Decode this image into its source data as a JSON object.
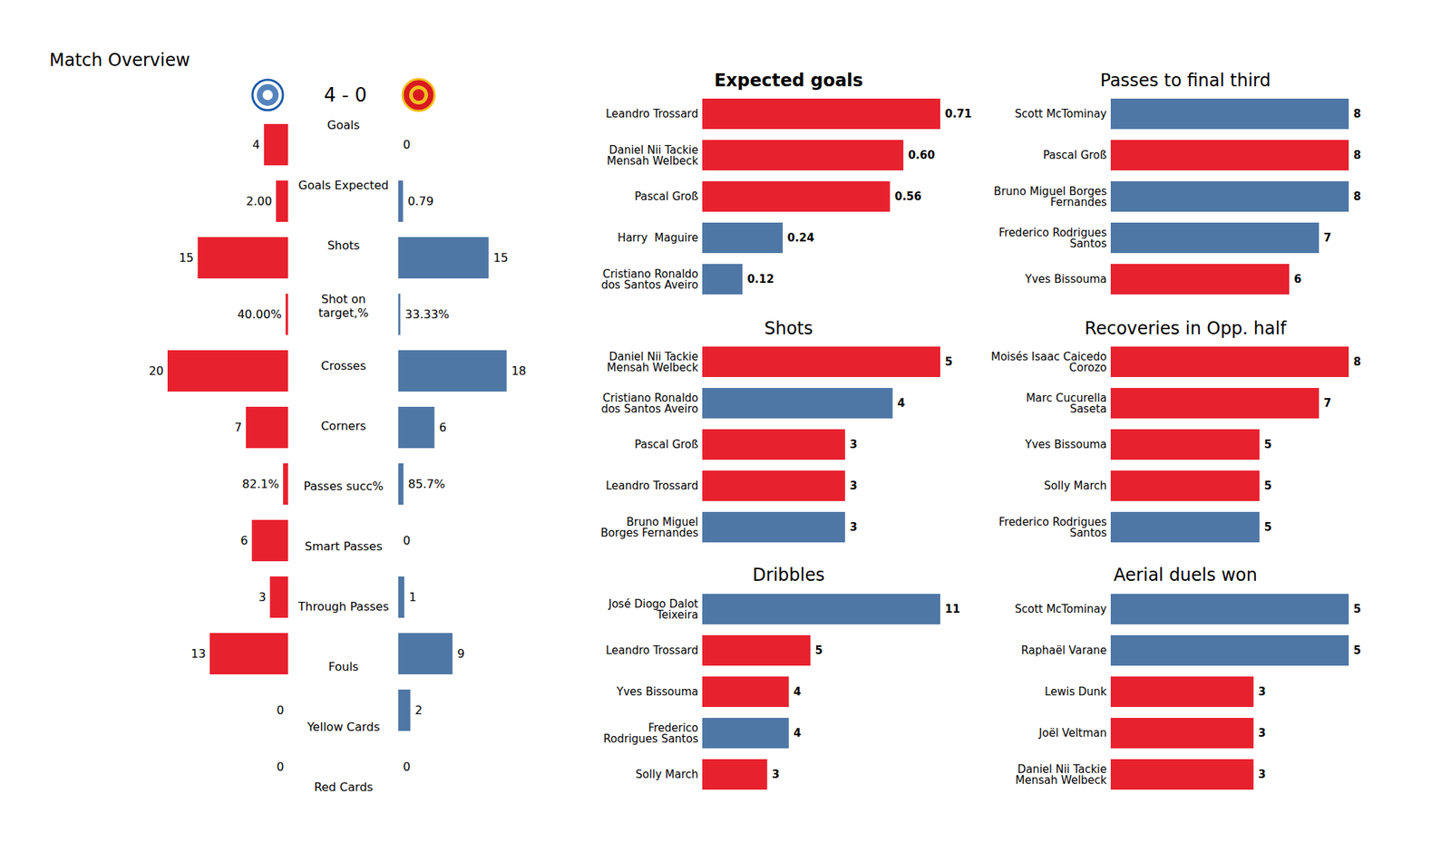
{
  "chart_data": [
    {
      "type": "bar",
      "orientation": "horizontal",
      "title": "Match Overview",
      "subtitle": "4 - 0",
      "categories": [
        "Goals",
        "Goals Expected",
        "Shots",
        "Shot on\ntarget,%",
        "Crosses",
        "Corners",
        "Passes succ%",
        "Smart Passes",
        "Through Passes",
        "Fouls",
        "Yellow Cards",
        "Red Cards"
      ],
      "series": [
        {
          "color": "#e8212e",
          "values": [
            4,
            2.0,
            15,
            0.4,
            20,
            7,
            0.821,
            6,
            3,
            13,
            0,
            0
          ],
          "value_labels": [
            "4",
            "2.00",
            "15",
            "40.00%",
            "20",
            "7",
            "82.1%",
            "6",
            "3",
            "13",
            "0",
            "0"
          ]
        },
        {
          "color": "#4e77a6",
          "values": [
            0,
            0.79,
            15,
            0.3333,
            18,
            6,
            0.857,
            0,
            1,
            9,
            2,
            0
          ],
          "value_labels": [
            "0",
            "0.79",
            "15",
            "33.33%",
            "18",
            "6",
            "85.7%",
            "0",
            "1",
            "9",
            "2",
            "0"
          ]
        }
      ],
      "data_labels": true,
      "tick_labels": false
    },
    {
      "type": "bar",
      "orientation": "horizontal",
      "title": "Expected goals",
      "categories": [
        "Leandro Trossard",
        "Daniel Nii Tackie\nMensah Welbeck",
        "Pascal Groß",
        "Harry  Maguire",
        "Cristiano Ronaldo\ndos Santos Aveiro"
      ],
      "values": [
        0.71,
        0.6,
        0.56,
        0.24,
        0.12
      ],
      "value_labels": [
        "0.71",
        "0.60",
        "0.56",
        "0.24",
        "0.12"
      ],
      "colors": [
        "#e8212e",
        "#e8212e",
        "#e8212e",
        "#4e77a6",
        "#4e77a6"
      ],
      "data_labels": true,
      "tick_labels": "y"
    },
    {
      "type": "bar",
      "orientation": "horizontal",
      "title": "Passes to final third",
      "categories": [
        "Scott McTominay",
        "Pascal Groß",
        "Bruno Miguel Borges\nFernandes",
        "Frederico Rodrigues\nSantos",
        "Yves Bissouma"
      ],
      "values": [
        8,
        8,
        8,
        7,
        6
      ],
      "colors": [
        "#4e77a6",
        "#e8212e",
        "#4e77a6",
        "#4e77a6",
        "#e8212e"
      ],
      "data_labels": true,
      "tick_labels": "y"
    },
    {
      "type": "bar",
      "orientation": "horizontal",
      "title": "Shots",
      "categories": [
        "Daniel Nii Tackie\nMensah Welbeck",
        "Cristiano Ronaldo\ndos Santos Aveiro",
        "Pascal Groß",
        "Leandro Trossard",
        "Bruno Miguel\nBorges Fernandes"
      ],
      "values": [
        5,
        4,
        3,
        3,
        3
      ],
      "colors": [
        "#e8212e",
        "#4e77a6",
        "#e8212e",
        "#e8212e",
        "#4e77a6"
      ],
      "data_labels": true,
      "tick_labels": "y"
    },
    {
      "type": "bar",
      "orientation": "horizontal",
      "title": "Recoveries in Opp. half",
      "categories": [
        "Moisés Isaac Caicedo\nCorozo",
        "Marc Cucurella\nSaseta",
        "Yves Bissouma",
        "Solly March",
        "Frederico Rodrigues\nSantos"
      ],
      "values": [
        8,
        7,
        5,
        5,
        5
      ],
      "colors": [
        "#e8212e",
        "#e8212e",
        "#e8212e",
        "#e8212e",
        "#4e77a6"
      ],
      "data_labels": true,
      "tick_labels": "y"
    },
    {
      "type": "bar",
      "orientation": "horizontal",
      "title": "Dribbles",
      "categories": [
        "José Diogo Dalot\nTeixeira",
        "Leandro Trossard",
        "Yves Bissouma",
        "Frederico\nRodrigues Santos",
        "Solly March"
      ],
      "values": [
        11,
        5,
        4,
        4,
        3
      ],
      "colors": [
        "#4e77a6",
        "#e8212e",
        "#e8212e",
        "#4e77a6",
        "#e8212e"
      ],
      "data_labels": true,
      "tick_labels": "y"
    },
    {
      "type": "bar",
      "orientation": "horizontal",
      "title": "Aerial duels won",
      "categories": [
        "Scott McTominay",
        "Raphaël Varane",
        "Lewis Dunk",
        "Joël Veltman",
        "Daniel Nii Tackie\nMensah Welbeck"
      ],
      "values": [
        5,
        5,
        3,
        3,
        3
      ],
      "colors": [
        "#4e77a6",
        "#4e77a6",
        "#e8212e",
        "#e8212e",
        "#e8212e"
      ],
      "data_labels": true,
      "tick_labels": "y"
    }
  ]
}
